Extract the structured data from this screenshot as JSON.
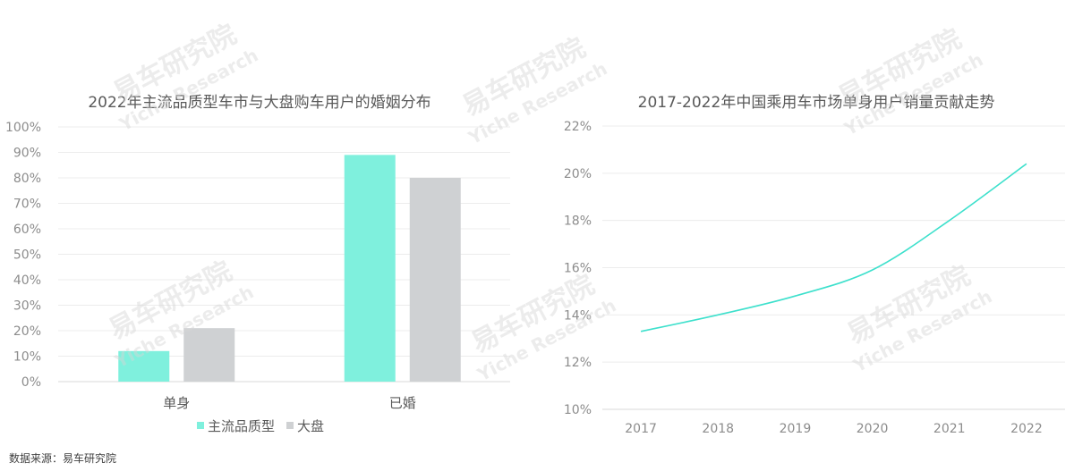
{
  "chart_data": [
    {
      "type": "bar",
      "title": "2022年主流品质型车市与大盘购车用户的婚姻分布",
      "categories": [
        "单身",
        "已婚"
      ],
      "series": [
        {
          "name": "主流品质型",
          "values": [
            12,
            89
          ],
          "color": "#7ff0dd"
        },
        {
          "name": "大盘",
          "values": [
            21,
            80
          ],
          "color": "#cfd1d3"
        }
      ],
      "ylim": [
        0,
        100
      ],
      "yticks": [
        "0%",
        "10%",
        "20%",
        "30%",
        "40%",
        "50%",
        "60%",
        "70%",
        "80%",
        "90%",
        "100%"
      ],
      "grid": true,
      "legend": "bottom"
    },
    {
      "type": "line",
      "title": "2017-2022年中国乘用车市场单身用户销量贡献走势",
      "x": [
        "2017",
        "2018",
        "2019",
        "2020",
        "2021",
        "2022"
      ],
      "series": [
        {
          "values": [
            13.3,
            14.0,
            14.8,
            15.9,
            18.0,
            20.4
          ],
          "color": "#3de0cc"
        }
      ],
      "ylim": [
        10,
        22
      ],
      "yticks": [
        "10%",
        "12%",
        "14%",
        "16%",
        "18%",
        "20%",
        "22%"
      ],
      "grid": true
    }
  ],
  "watermark": {
    "cn": "易车研究院",
    "en": "Yiche Research"
  },
  "source": "数据来源：易车研究院"
}
